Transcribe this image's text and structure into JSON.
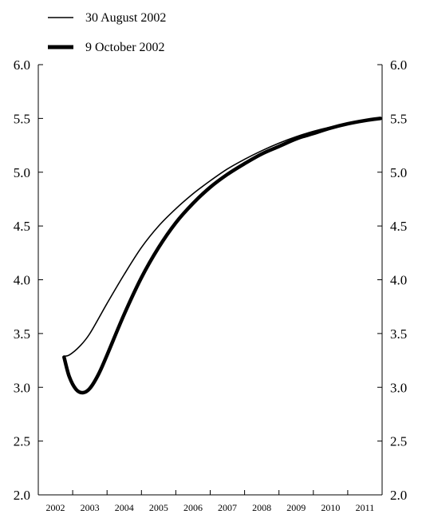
{
  "chart_data": {
    "type": "line",
    "title": "",
    "xlabel": "",
    "ylabel": "",
    "xlim": [
      2002,
      2012
    ],
    "ylim": [
      2.0,
      6.0
    ],
    "y_ticks": [
      2.0,
      2.5,
      3.0,
      3.5,
      4.0,
      4.5,
      5.0,
      5.5,
      6.0
    ],
    "y_tick_labels": [
      "2.0",
      "2.5",
      "3.0",
      "3.5",
      "4.0",
      "4.5",
      "5.0",
      "5.5",
      "6.0"
    ],
    "x_ticks": [
      2002,
      2003,
      2004,
      2005,
      2006,
      2007,
      2008,
      2009,
      2010,
      2011
    ],
    "x_tick_labels": [
      "2002",
      "2003",
      "2004",
      "2005",
      "2006",
      "2007",
      "2008",
      "2009",
      "2010",
      "2011"
    ],
    "grid": false,
    "legend_position": "top-left",
    "series": [
      {
        "name": "30 August 2002",
        "line_style": "thin",
        "color": "#000000",
        "x": [
          2002.75,
          2002.9,
          2003.2,
          2003.5,
          2004.0,
          2004.5,
          2005.0,
          2005.5,
          2006.0,
          2006.5,
          2007.0,
          2007.5,
          2008.0,
          2008.5,
          2009.0,
          2009.5,
          2010.0,
          2010.5,
          2011.0,
          2011.5,
          2011.95
        ],
        "y": [
          3.29,
          3.3,
          3.38,
          3.5,
          3.78,
          4.05,
          4.3,
          4.5,
          4.66,
          4.8,
          4.92,
          5.03,
          5.12,
          5.2,
          5.27,
          5.33,
          5.38,
          5.42,
          5.45,
          5.48,
          5.5
        ]
      },
      {
        "name": "9 October 2002",
        "line_style": "thick",
        "color": "#000000",
        "x": [
          2002.75,
          2002.9,
          2003.1,
          2003.3,
          2003.5,
          2003.75,
          2004.0,
          2004.5,
          2005.0,
          2005.5,
          2006.0,
          2006.5,
          2007.0,
          2007.5,
          2008.0,
          2008.5,
          2009.0,
          2009.5,
          2010.0,
          2010.5,
          2011.0,
          2011.5,
          2011.95
        ],
        "y": [
          3.28,
          3.1,
          2.98,
          2.95,
          2.99,
          3.12,
          3.3,
          3.68,
          4.02,
          4.3,
          4.53,
          4.71,
          4.86,
          4.98,
          5.08,
          5.17,
          5.24,
          5.31,
          5.36,
          5.41,
          5.45,
          5.48,
          5.5
        ]
      }
    ]
  }
}
